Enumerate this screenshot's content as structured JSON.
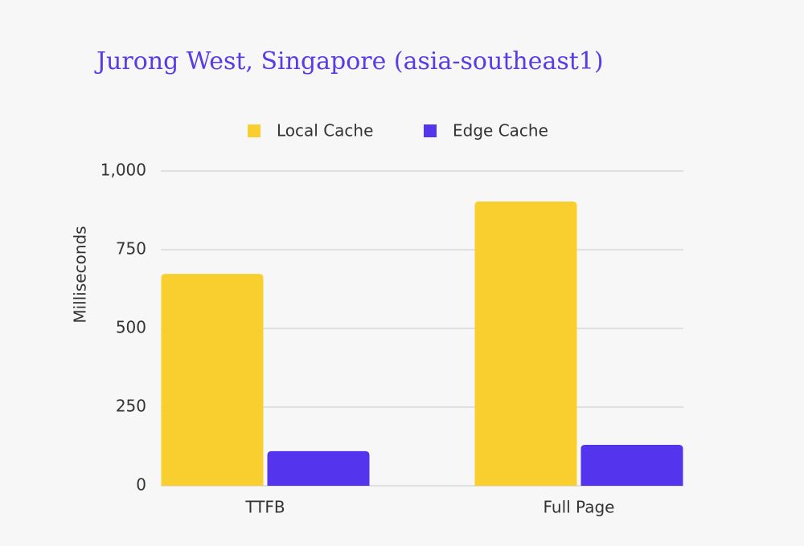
{
  "chart_data": {
    "type": "bar",
    "title": "Jurong West, Singapore (asia-southeast1)",
    "y_label": "Milliseconds",
    "categories": [
      "TTFB",
      "Full Page"
    ],
    "series": [
      {
        "name": "Local Cache",
        "color": "#f8cf2e",
        "values": [
          673,
          903
        ]
      },
      {
        "name": "Edge Cache",
        "color": "#5534ee",
        "values": [
          110,
          130
        ]
      }
    ],
    "ylim": [
      0,
      1000
    ],
    "yticks": [
      0,
      250,
      500,
      750,
      {
        "value": 1000,
        "label": "1,000"
      }
    ],
    "grid": true
  }
}
